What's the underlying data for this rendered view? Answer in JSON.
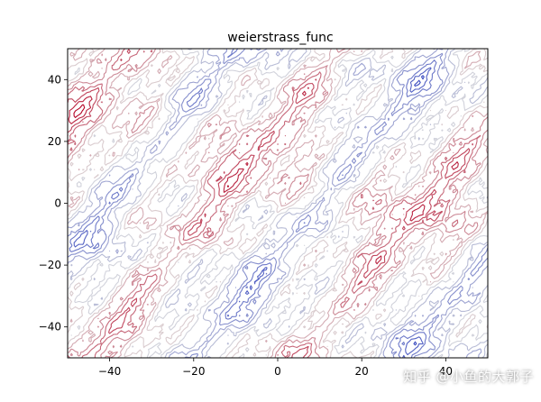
{
  "chart_data": {
    "type": "contour",
    "title": "weierstrass_func",
    "xlabel": "",
    "ylabel": "",
    "xlim": [
      -50,
      50
    ],
    "ylim": [
      -50,
      50
    ],
    "x_ticks": [
      -40,
      -20,
      0,
      20,
      40
    ],
    "y_ticks": [
      -40,
      -20,
      0,
      20,
      40
    ],
    "x_tick_labels": [
      "−40",
      "−20",
      "0",
      "20",
      "40"
    ],
    "y_tick_labels": [
      "−40",
      "−20",
      "0",
      "20",
      "40"
    ],
    "colormap": "coolwarm",
    "colors": {
      "low": "#3b4cc0",
      "mid": "#dddddd",
      "high": "#b40426"
    },
    "grid": false,
    "legend": "none"
  },
  "watermark": "知乎 @小鱼的大郭子"
}
